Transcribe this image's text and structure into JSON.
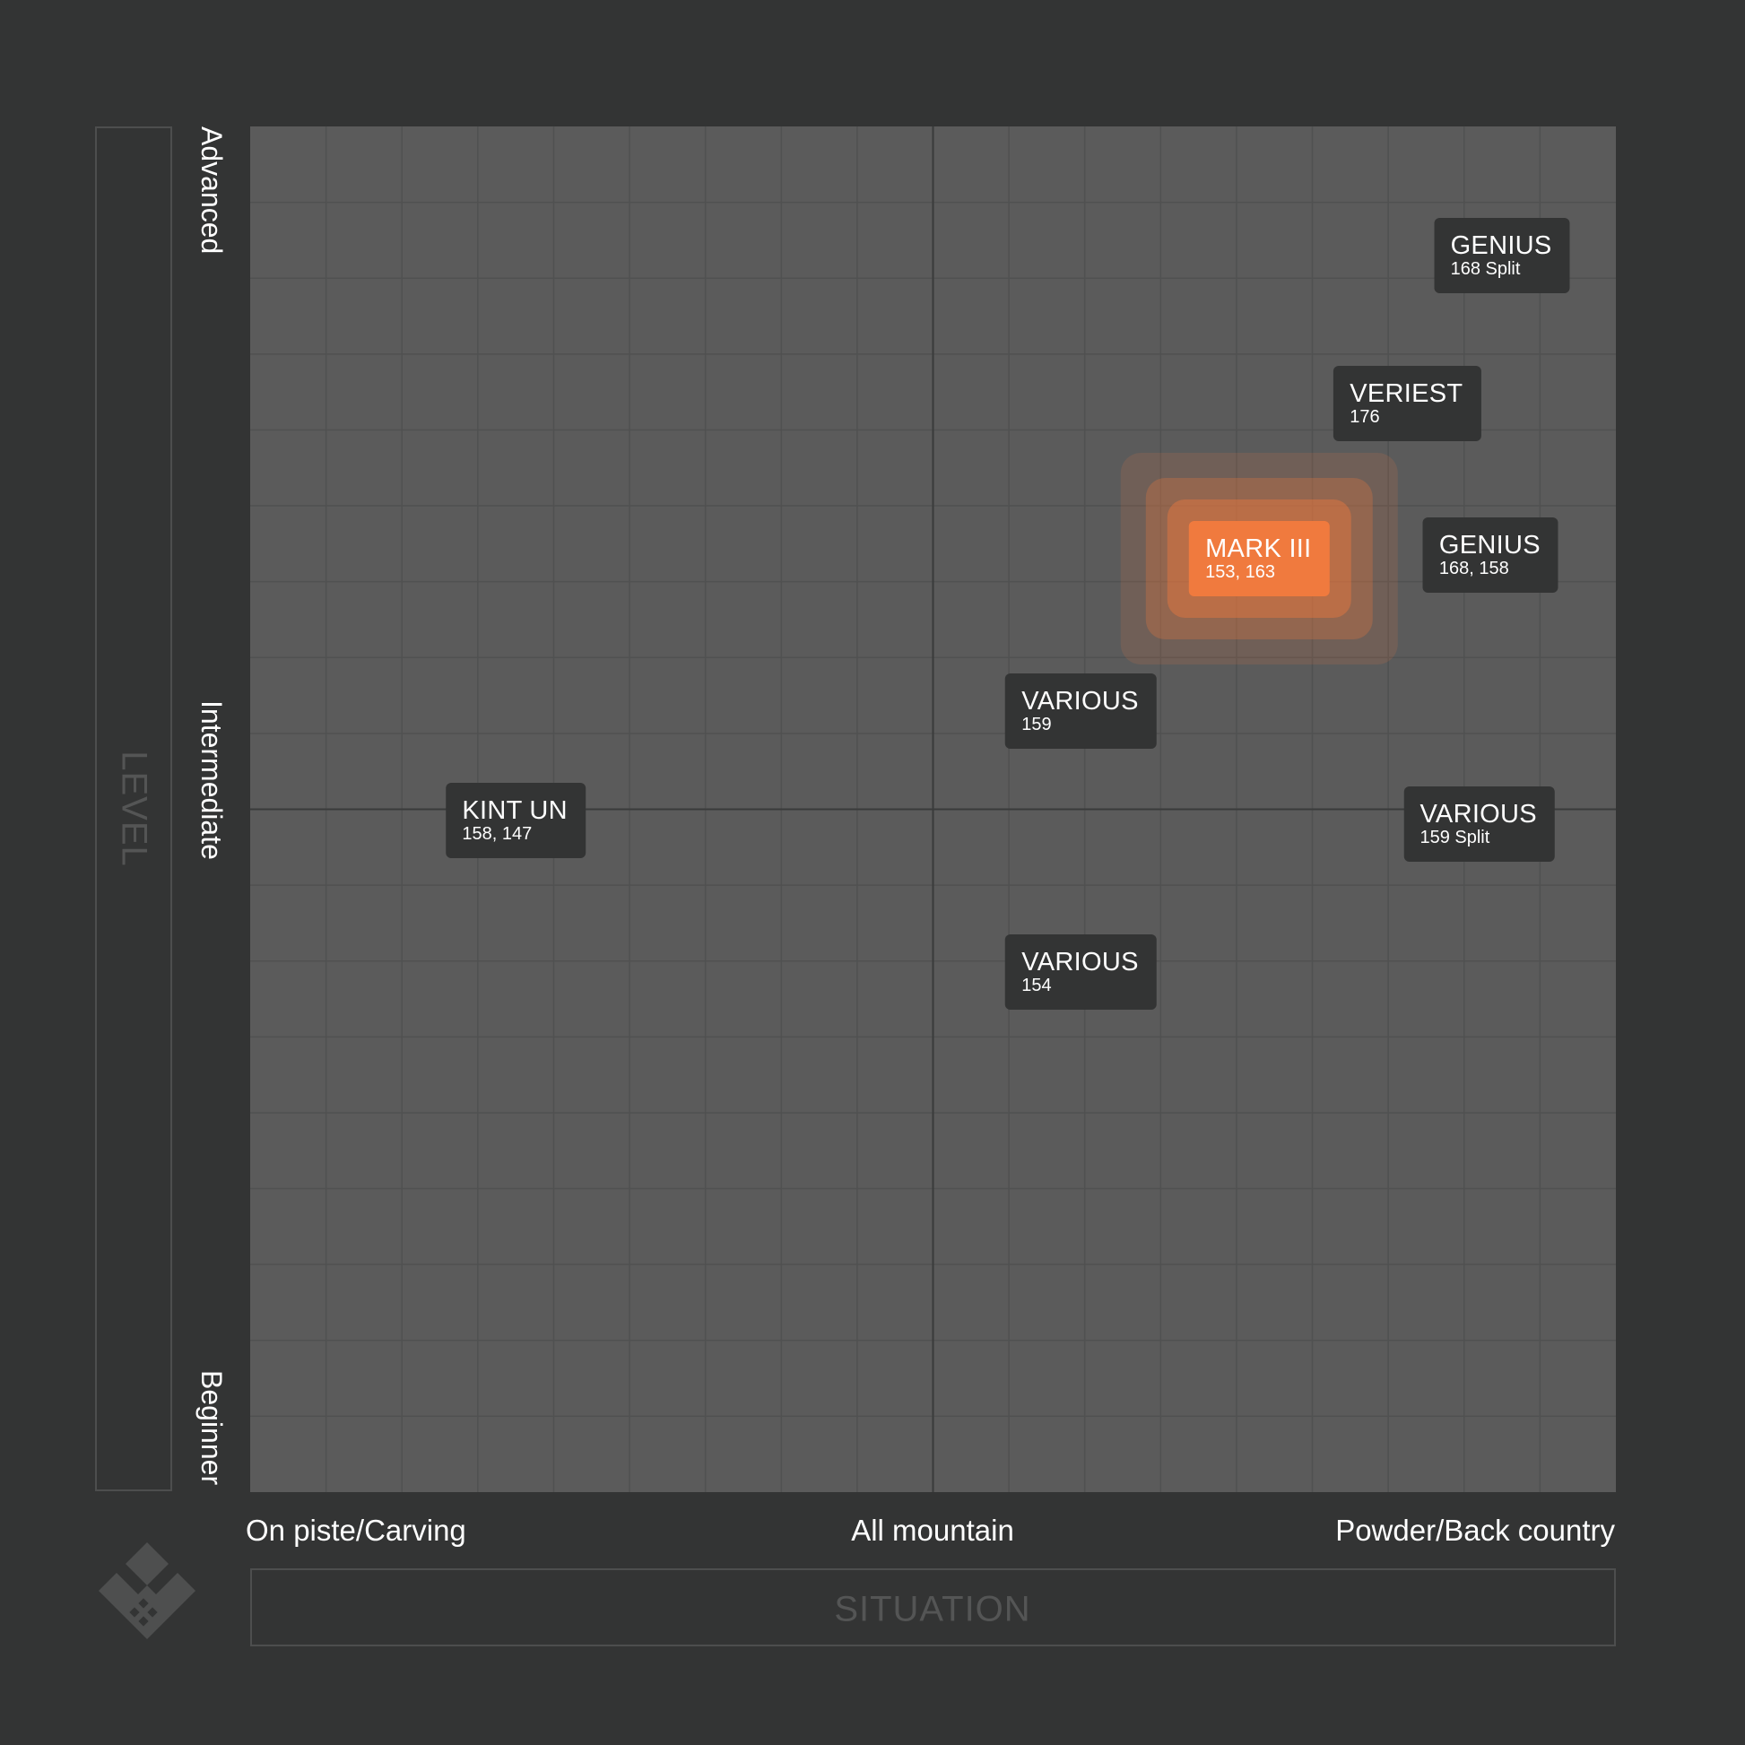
{
  "chart_data": {
    "type": "scatter",
    "xlabel": "SITUATION",
    "ylabel": "LEVEL",
    "xlim": [
      0,
      18
    ],
    "ylim": [
      0,
      18
    ],
    "grid": true,
    "x_ticks": [
      {
        "value": 0,
        "label": "On piste/Carving"
      },
      {
        "value": 9,
        "label": "All mountain"
      },
      {
        "value": 18,
        "label": "Powder/Back country"
      }
    ],
    "y_ticks": [
      {
        "value": 18,
        "label": "Advanced"
      },
      {
        "value": 9,
        "label": "Intermediate"
      },
      {
        "value": 0,
        "label": "Beginner"
      }
    ],
    "points": [
      {
        "name": "GENIUS",
        "sizes": "168 Split",
        "x": 16.5,
        "y": 16.3,
        "highlight": false
      },
      {
        "name": "VERIEST",
        "sizes": "176",
        "x": 15.25,
        "y": 14.35,
        "highlight": false
      },
      {
        "name": "MARK III",
        "sizes": "153, 163",
        "x": 13.3,
        "y": 12.3,
        "highlight": true
      },
      {
        "name": "GENIUS",
        "sizes": "168, 158",
        "x": 16.35,
        "y": 12.35,
        "highlight": false
      },
      {
        "name": "VARIOUS",
        "sizes": "159",
        "x": 10.95,
        "y": 10.3,
        "highlight": false
      },
      {
        "name": "KINT UN",
        "sizes": "158, 147",
        "x": 3.5,
        "y": 8.85,
        "highlight": false
      },
      {
        "name": "VARIOUS",
        "sizes": "159 Split",
        "x": 16.2,
        "y": 8.8,
        "highlight": false
      },
      {
        "name": "VARIOUS",
        "sizes": "154",
        "x": 10.95,
        "y": 6.85,
        "highlight": false
      }
    ]
  }
}
